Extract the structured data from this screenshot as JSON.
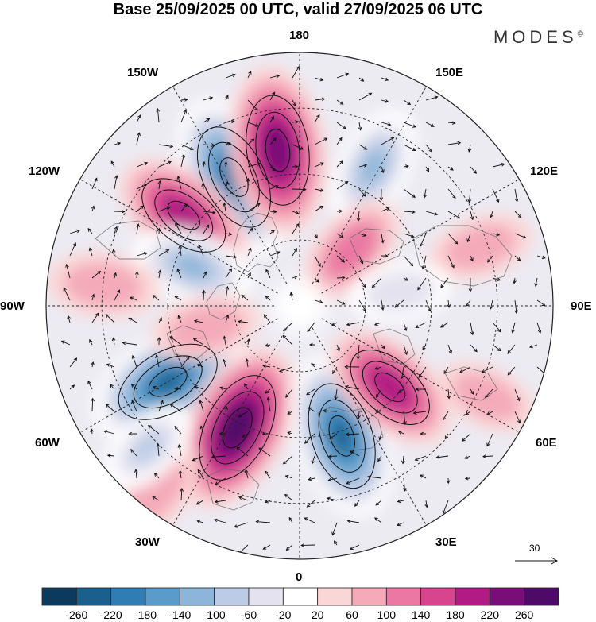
{
  "title": "Base 25/09/2025 00 UTC, valid 27/09/2025 06 UTC",
  "brand": {
    "name": "MODES",
    "mark": "©"
  },
  "longitude_labels": {
    "lon_180": "180",
    "lon_150E": "150E",
    "lon_120E": "120E",
    "lon_90E": "90E",
    "lon_60E": "60E",
    "lon_30E": "30E",
    "lon_0": "0",
    "lon_30W": "30W",
    "lon_60W": "60W",
    "lon_90W": "90W",
    "lon_120W": "120W",
    "lon_150W": "150W"
  },
  "reference_vector": {
    "value": "30"
  },
  "colorbar": {
    "labels": [
      "-260",
      "-220",
      "-180",
      "-140",
      "-100",
      "-60",
      "-20",
      "20",
      "60",
      "100",
      "140",
      "180",
      "220",
      "260"
    ],
    "colors": [
      "#0b3a5c",
      "#1b5f8c",
      "#2f7db2",
      "#5a9bc9",
      "#8db5d9",
      "#bccce6",
      "#e4e2ef",
      "#ffffff",
      "#fbd6d6",
      "#f4aab9",
      "#ea78a2",
      "#d8458f",
      "#b11b83",
      "#7a0e78",
      "#4d0a66"
    ]
  },
  "anomalies": [
    {
      "name": "low-150W",
      "value": -240,
      "lon": -153,
      "r": 0.57
    },
    {
      "name": "high-170W",
      "value": 250,
      "lon": -172,
      "r": 0.62
    },
    {
      "name": "high-130W",
      "value": 190,
      "lon": -128,
      "r": 0.58
    },
    {
      "name": "low-150E",
      "value": -120,
      "lon": 152,
      "r": 0.62
    },
    {
      "name": "low-105W",
      "value": -120,
      "lon": -110,
      "r": 0.45
    },
    {
      "name": "high-100W",
      "value": 90,
      "lon": -96,
      "r": 0.78
    },
    {
      "name": "high-130E",
      "value": 110,
      "lon": 137,
      "r": 0.3
    },
    {
      "name": "high-110E",
      "value": 70,
      "lon": 108,
      "r": 0.75
    },
    {
      "name": "low-100E",
      "value": -60,
      "lon": 98,
      "r": 0.4
    },
    {
      "name": "low-60W",
      "value": -240,
      "lon": -60,
      "r": 0.6
    },
    {
      "name": "high-70W",
      "value": 80,
      "lon": -77,
      "r": 0.38
    },
    {
      "name": "high-30W",
      "value": 260,
      "lon": -27,
      "r": 0.54
    },
    {
      "name": "low-20E",
      "value": -240,
      "lon": 18,
      "r": 0.54
    },
    {
      "name": "high-50E",
      "value": 180,
      "lon": 48,
      "r": 0.48
    },
    {
      "name": "high-55W-outer",
      "value": 90,
      "lon": -38,
      "r": 0.92
    },
    {
      "name": "low-40W-outer",
      "value": -70,
      "lon": -47,
      "r": 0.82
    },
    {
      "name": "high-60E-outer",
      "value": 60,
      "lon": 64,
      "r": 0.82
    }
  ]
}
